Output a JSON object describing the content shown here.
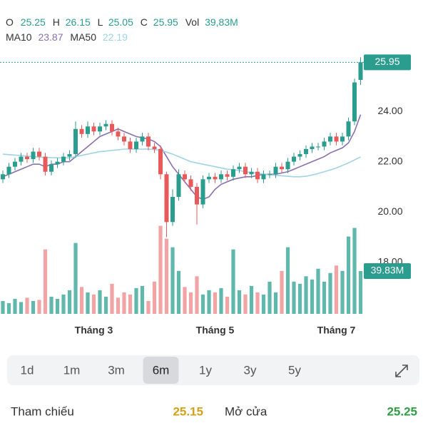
{
  "chart_data": {
    "type": "candlestick",
    "header": {
      "open_label": "O",
      "open": "25.25",
      "high_label": "H",
      "high": "26.15",
      "low_label": "L",
      "low": "25.05",
      "close_label": "C",
      "close": "25.95",
      "volume_label": "Vol",
      "volume": "39,83M",
      "ma10": "23.87",
      "ma50": "22.19"
    },
    "categories": [
      null,
      null,
      null,
      null,
      null,
      null,
      null,
      null,
      null,
      null,
      null,
      null,
      null,
      null,
      null,
      "Tháng 3",
      null,
      null,
      null,
      null,
      null,
      null,
      null,
      null,
      null,
      null,
      null,
      null,
      null,
      null,
      null,
      null,
      null,
      null,
      null,
      "Tháng 5",
      null,
      null,
      null,
      null,
      null,
      null,
      null,
      null,
      null,
      null,
      null,
      null,
      null,
      null,
      null,
      null,
      null,
      null,
      null,
      "Tháng 7",
      null,
      null,
      null,
      null
    ],
    "open": [
      21.3,
      21.5,
      21.8,
      22.0,
      22.2,
      22.1,
      22.4,
      22.2,
      21.6,
      21.9,
      22.0,
      22.2,
      22.3,
      23.3,
      23.1,
      23.4,
      23.2,
      23.4,
      23.5,
      23.2,
      23.0,
      22.8,
      22.5,
      22.8,
      23.0,
      22.6,
      22.5,
      21.5,
      19.6,
      20.6,
      21.5,
      21.3,
      21.0,
      20.3,
      21.3,
      21.4,
      21.3,
      21.5,
      21.4,
      21.7,
      21.8,
      21.5,
      21.6,
      21.3,
      21.5,
      21.5,
      21.8,
      21.7,
      22.0,
      22.2,
      22.3,
      22.5,
      22.6,
      22.6,
      22.8,
      23.0,
      22.8,
      23.0,
      23.6,
      25.25
    ],
    "high": [
      21.65,
      21.95,
      22.15,
      22.35,
      22.35,
      22.55,
      22.55,
      22.35,
      22.05,
      22.15,
      22.35,
      22.45,
      23.6,
      23.45,
      23.6,
      23.55,
      23.55,
      23.65,
      23.65,
      23.35,
      23.15,
      22.95,
      22.95,
      23.15,
      23.15,
      22.75,
      22.65,
      21.6,
      20.9,
      21.7,
      21.65,
      21.45,
      21.15,
      21.45,
      21.55,
      21.55,
      21.65,
      21.65,
      21.85,
      21.95,
      21.95,
      21.75,
      21.75,
      21.65,
      21.65,
      21.95,
      21.95,
      22.15,
      22.35,
      22.45,
      22.65,
      22.75,
      22.75,
      22.95,
      23.15,
      23.15,
      23.15,
      23.75,
      25.3,
      26.15
    ],
    "low": [
      21.15,
      21.35,
      21.65,
      21.85,
      21.95,
      21.95,
      22.05,
      21.45,
      21.45,
      21.75,
      21.85,
      22.05,
      22.15,
      22.95,
      22.95,
      23.05,
      23.05,
      23.25,
      23.05,
      22.85,
      22.65,
      22.35,
      22.35,
      22.65,
      22.45,
      22.35,
      21.3,
      19.0,
      19.45,
      20.45,
      21.15,
      20.85,
      19.5,
      20.15,
      21.15,
      21.15,
      21.15,
      21.25,
      21.25,
      21.55,
      21.35,
      21.35,
      21.15,
      21.15,
      21.35,
      21.35,
      21.55,
      21.55,
      21.85,
      22.05,
      22.15,
      22.35,
      22.45,
      22.45,
      22.65,
      22.65,
      22.65,
      22.85,
      23.45,
      25.05
    ],
    "close": [
      21.5,
      21.8,
      22.0,
      22.2,
      22.1,
      22.4,
      22.2,
      21.6,
      21.9,
      22.0,
      22.2,
      22.3,
      23.3,
      23.1,
      23.4,
      23.2,
      23.4,
      23.5,
      23.2,
      23.0,
      22.8,
      22.5,
      22.8,
      23.0,
      22.6,
      22.5,
      21.5,
      19.6,
      20.6,
      21.5,
      21.3,
      21.0,
      20.3,
      21.3,
      21.4,
      21.3,
      21.5,
      21.4,
      21.7,
      21.8,
      21.5,
      21.6,
      21.3,
      21.5,
      21.5,
      21.8,
      21.7,
      22.0,
      22.2,
      22.3,
      22.5,
      22.6,
      22.6,
      22.8,
      23.0,
      22.8,
      23.0,
      23.6,
      25.15,
      25.95
    ],
    "volume": [
      12,
      10,
      14,
      11,
      15,
      12,
      13,
      60,
      16,
      14,
      18,
      22,
      66,
      25,
      20,
      18,
      22,
      16,
      28,
      15,
      20,
      18,
      24,
      26,
      12,
      30,
      82,
      70,
      62,
      40,
      25,
      20,
      35,
      18,
      22,
      20,
      24,
      16,
      60,
      22,
      18,
      26,
      20,
      18,
      30,
      20,
      40,
      62,
      30,
      28,
      35,
      32,
      42,
      30,
      38,
      45,
      40,
      72,
      80,
      39.83
    ],
    "series": [
      {
        "name": "MA10",
        "color": "#8a6fb0",
        "values": [
          21.4,
          21.5,
          21.6,
          21.7,
          21.8,
          21.9,
          21.9,
          21.8,
          21.9,
          21.9,
          22.0,
          22.0,
          22.2,
          22.4,
          22.6,
          22.8,
          23.0,
          23.1,
          23.2,
          23.3,
          23.2,
          23.1,
          23.0,
          22.95,
          22.9,
          22.8,
          22.6,
          22.2,
          21.8,
          21.5,
          21.2,
          20.9,
          20.6,
          20.5,
          20.6,
          20.9,
          21.1,
          21.2,
          21.3,
          21.35,
          21.4,
          21.4,
          21.45,
          21.5,
          21.5,
          21.5,
          21.55,
          21.6,
          21.7,
          21.8,
          21.9,
          22.0,
          22.1,
          22.2,
          22.35,
          22.45,
          22.55,
          22.75,
          23.2,
          23.87
        ]
      },
      {
        "name": "MA50",
        "color": "#9fd3e6",
        "values": [
          22.3,
          22.28,
          22.26,
          22.24,
          22.22,
          22.2,
          22.18,
          22.17,
          22.16,
          22.15,
          22.15,
          22.15,
          22.2,
          22.25,
          22.3,
          22.35,
          22.4,
          22.42,
          22.45,
          22.47,
          22.5,
          22.5,
          22.5,
          22.5,
          22.5,
          22.48,
          22.45,
          22.38,
          22.3,
          22.2,
          22.1,
          22.0,
          21.95,
          21.9,
          21.85,
          21.8,
          21.75,
          21.7,
          21.68,
          21.65,
          21.6,
          21.57,
          21.54,
          21.51,
          21.48,
          21.46,
          21.44,
          21.42,
          21.4,
          21.4,
          21.42,
          21.47,
          21.53,
          21.6,
          21.67,
          21.75,
          21.85,
          21.95,
          22.07,
          22.19
        ]
      }
    ],
    "up_color": "#2a9d8f",
    "down_color": "#e85a5a",
    "up_volume_color": "#5fb8ab",
    "down_volume_color": "#f2a3a3",
    "ylim": [
      15.95,
      26.3
    ],
    "yticks": [
      {
        "value": 18,
        "label": "18.00"
      },
      {
        "value": 20,
        "label": "20.00"
      },
      {
        "value": 22,
        "label": "22.00"
      },
      {
        "value": 24,
        "label": "24.00"
      }
    ],
    "volume_lim": [
      0,
      83
    ],
    "last_price": {
      "value": 25.95,
      "label": "25.95"
    },
    "last_volume": {
      "value": 39.83,
      "label": "39.83M"
    }
  },
  "periods": [
    "1d",
    "1m",
    "3m",
    "6m",
    "1y",
    "3y",
    "5y"
  ],
  "selected_period": "6m",
  "stats": [
    {
      "label": "Tham chiếu",
      "value": "25.15",
      "color": "#d4a017"
    },
    {
      "label": "Mở cửa",
      "value": "25.25",
      "color": "#2ea043"
    }
  ]
}
